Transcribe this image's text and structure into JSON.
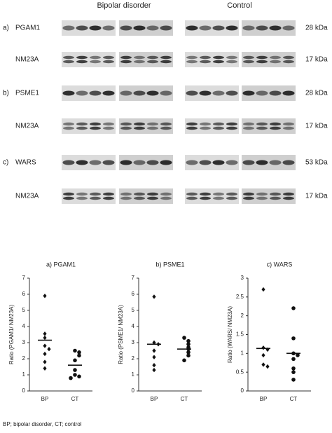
{
  "blots": {
    "groups": [
      "Bipolar disorder",
      "Control"
    ],
    "rows": [
      {
        "panel": "a)",
        "protein": "PGAM1",
        "size": "28 kDa"
      },
      {
        "protein": "NM23A",
        "size": "17 kDa"
      },
      {
        "panel": "b)",
        "protein": "PSME1",
        "size": "28 kDa"
      },
      {
        "protein": "NM23A",
        "size": "17 kDa"
      },
      {
        "panel": "c)",
        "protein": "WARS",
        "size": "53 kDa"
      },
      {
        "protein": "NM23A",
        "size": "17 kDa"
      }
    ]
  },
  "chart_data": [
    {
      "type": "strip",
      "title": "a) PGAM1",
      "y_label": "Ratio (PGAM1/ NM23A)",
      "categories": [
        "BP",
        "CT"
      ],
      "ylim": [
        0,
        7
      ],
      "yticks": [
        0,
        1,
        2,
        3,
        4,
        5,
        6,
        7
      ],
      "groups": [
        {
          "marker": "diamond",
          "values": [
            5.9,
            3.55,
            3.3,
            2.8,
            2.6,
            2.3,
            1.8,
            1.4
          ],
          "mean": 3.15
        },
        {
          "marker": "circle",
          "values": [
            2.5,
            2.4,
            2.2,
            1.9,
            1.3,
            1.0,
            0.9,
            0.8
          ],
          "mean": 1.6
        }
      ]
    },
    {
      "type": "strip",
      "title": "b) PSME1",
      "y_label": "Ratio (PSME1/ NM23A)",
      "categories": [
        "BP",
        "CT"
      ],
      "ylim": [
        0,
        7
      ],
      "yticks": [
        0,
        1,
        2,
        3,
        4,
        5,
        6,
        7
      ],
      "groups": [
        {
          "marker": "diamond",
          "values": [
            5.85,
            3.0,
            2.9,
            2.5,
            2.1,
            1.6,
            1.3
          ],
          "mean": 2.9
        },
        {
          "marker": "circle",
          "values": [
            3.3,
            3.1,
            2.9,
            2.7,
            2.6,
            2.4,
            2.2,
            1.9
          ],
          "mean": 2.6
        }
      ]
    },
    {
      "type": "strip",
      "title": "c) WARS",
      "y_label": "Ratio (WARS/ NM23A)",
      "categories": [
        "BP",
        "CT"
      ],
      "ylim": [
        0,
        3
      ],
      "yticks": [
        0,
        0.5,
        1,
        1.5,
        2,
        2.5,
        3
      ],
      "groups": [
        {
          "marker": "diamond",
          "values": [
            2.7,
            1.15,
            1.1,
            0.95,
            0.7,
            0.65
          ],
          "mean": 1.13
        },
        {
          "marker": "circle",
          "values": [
            2.2,
            1.4,
            1.0,
            0.95,
            0.85,
            0.6,
            0.5,
            0.3
          ],
          "mean": 1.0
        }
      ]
    }
  ],
  "footnote": "BP; bipolar disorder, CT; control"
}
